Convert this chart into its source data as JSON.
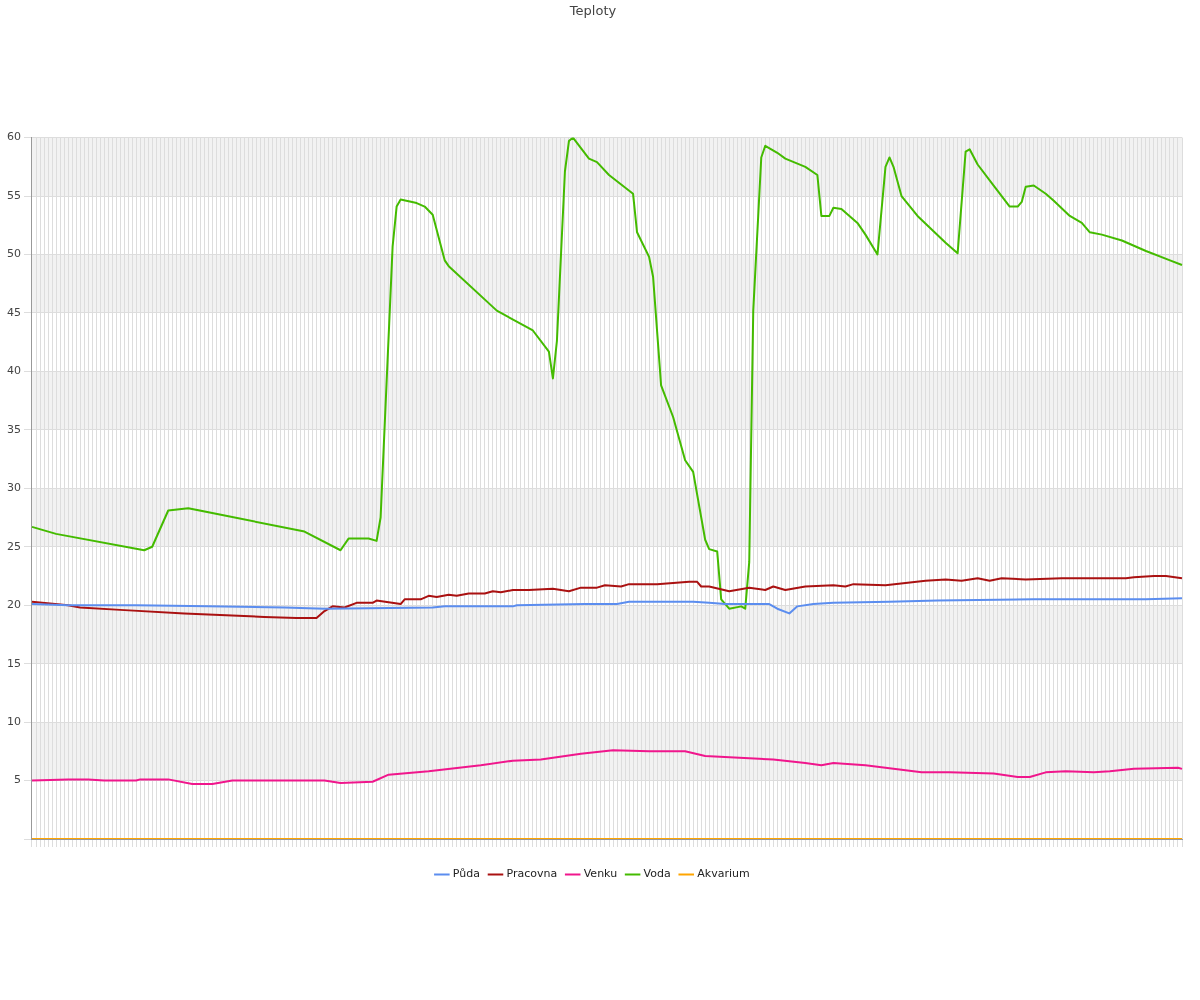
{
  "chart_data": {
    "type": "line",
    "title": "Teploty",
    "categories": [
      null,
      null,
      null,
      null,
      null,
      null,
      null,
      null,
      null,
      null,
      null,
      null,
      null,
      null,
      null,
      null,
      null,
      null,
      null,
      null,
      null,
      null,
      null,
      null,
      null,
      null,
      null,
      null,
      null,
      null,
      null,
      null,
      null,
      null,
      null,
      null,
      null,
      null,
      null,
      null,
      null,
      null,
      null,
      null,
      null,
      null,
      null,
      null,
      null,
      null,
      null,
      null,
      null,
      null,
      null,
      null,
      null,
      null,
      null,
      null,
      null,
      null,
      null,
      null,
      null,
      null,
      null,
      null,
      null,
      null,
      null,
      null,
      null,
      null,
      null,
      null,
      null,
      null,
      null,
      null,
      null,
      null,
      null,
      null,
      null,
      null,
      null,
      null,
      null,
      null,
      null,
      null,
      null,
      null,
      null,
      null,
      null,
      null,
      null,
      null,
      null,
      null,
      null,
      null,
      null,
      null,
      null,
      null,
      null,
      null,
      null,
      null,
      null,
      null,
      null,
      null,
      null,
      null,
      null,
      null,
      null,
      null,
      null,
      null,
      null,
      null,
      null,
      null,
      null,
      null,
      null,
      null,
      null,
      null,
      null,
      null,
      null,
      null,
      null,
      null,
      null,
      null,
      null,
      null,
      null,
      null,
      null,
      null,
      null,
      null,
      null,
      null,
      null,
      null,
      null,
      null,
      null,
      null,
      null,
      null,
      null,
      null,
      null,
      null,
      null,
      null,
      null,
      null,
      null,
      null,
      null,
      null,
      null,
      null,
      null,
      null,
      null,
      null,
      null,
      null,
      null,
      null,
      null,
      null,
      null,
      null,
      null,
      null,
      null,
      null,
      null,
      null,
      null,
      null,
      null,
      null,
      null,
      null,
      null,
      null,
      null,
      null,
      null,
      null,
      null,
      null,
      null,
      null,
      null,
      null,
      null,
      null,
      null,
      null,
      null,
      null,
      null,
      null,
      null,
      null,
      null,
      null,
      null,
      null,
      null,
      null,
      null,
      null,
      null,
      null,
      null,
      null,
      null,
      null,
      null,
      null,
      null,
      null,
      null,
      null,
      null,
      null,
      null,
      null,
      null,
      null,
      null,
      null,
      null,
      null,
      null,
      null,
      null,
      null,
      null,
      null,
      null,
      null,
      null,
      null,
      null,
      null,
      null,
      null,
      null,
      null,
      null,
      null,
      null,
      null,
      null,
      null,
      null,
      null,
      null,
      null,
      null,
      null,
      null,
      null,
      null,
      null,
      null,
      null,
      null,
      null,
      null,
      null
    ],
    "ylim": [
      0,
      60
    ],
    "yticks": [
      {
        "value": 0,
        "label": null
      },
      5,
      10,
      15,
      20,
      25,
      30,
      35,
      40,
      45,
      50,
      55,
      60
    ],
    "grid": true,
    "legend": "bottom",
    "tick_labels": "y",
    "marker": "none",
    "line_style": "solid",
    "bands": [
      {
        "axis": "y",
        "from": 5,
        "to": 10,
        "color": "#f2f2f2"
      },
      {
        "axis": "y",
        "from": 15,
        "to": 20,
        "color": "#f2f2f2"
      },
      {
        "axis": "y",
        "from": 25,
        "to": 30,
        "color": "#f2f2f2"
      },
      {
        "axis": "y",
        "from": 35,
        "to": 40,
        "color": "#f2f2f2"
      },
      {
        "axis": "y",
        "from": 45,
        "to": 50,
        "color": "#f2f2f2"
      },
      {
        "axis": "y",
        "from": 55,
        "to": 60,
        "color": "#f2f2f2"
      }
    ],
    "series": [
      {
        "name": "Půda",
        "color": "#5b8def",
        "values": [
          20.1,
          null,
          null,
          null,
          null,
          null,
          null,
          null,
          null,
          20.0,
          null,
          null,
          null,
          null,
          null,
          null,
          null,
          null,
          null,
          null,
          null,
          null,
          null,
          null,
          null,
          null,
          20.0,
          null,
          null,
          null,
          null,
          null,
          null,
          null,
          null,
          null,
          null,
          null,
          null,
          null,
          null,
          null,
          null,
          null,
          19.9,
          null,
          null,
          null,
          null,
          null,
          null,
          null,
          null,
          null,
          null,
          null,
          null,
          null,
          null,
          null,
          null,
          null,
          null,
          19.8,
          null,
          null,
          null,
          null,
          null,
          null,
          null,
          null,
          null,
          19.7,
          null,
          null,
          null,
          null,
          null,
          null,
          null,
          null,
          null,
          null,
          null,
          null,
          null,
          null,
          null,
          null,
          null,
          null,
          null,
          null,
          null,
          null,
          null,
          null,
          null,
          null,
          19.8,
          null,
          null,
          19.9,
          null,
          null,
          null,
          null,
          null,
          null,
          null,
          null,
          null,
          null,
          null,
          null,
          null,
          null,
          null,
          null,
          19.9,
          20.0,
          null,
          null,
          null,
          null,
          null,
          null,
          null,
          null,
          null,
          null,
          null,
          null,
          null,
          null,
          null,
          null,
          20.1,
          null,
          null,
          null,
          null,
          20.1,
          null,
          null,
          20.1,
          null,
          null,
          20.3,
          null,
          null,
          null,
          null,
          null,
          null,
          null,
          null,
          null,
          null,
          null,
          null,
          null,
          null,
          null,
          20.3,
          null,
          null,
          null,
          20.2,
          null,
          null,
          null,
          20.1,
          null,
          null,
          null,
          null,
          null,
          null,
          null,
          null,
          null,
          null,
          20.1,
          null,
          19.7,
          null,
          null,
          19.3,
          null,
          19.9,
          null,
          null,
          null,
          20.1,
          null,
          null,
          null,
          null,
          20.2,
          null,
          null,
          null,
          null,
          null,
          null,
          null,
          null,
          null,
          null,
          null,
          null,
          null,
          20.3,
          null,
          null,
          null,
          null,
          null,
          null,
          null,
          null,
          null,
          null,
          null,
          20.4,
          null,
          null,
          null,
          null,
          null,
          null,
          null,
          null,
          null,
          null,
          null,
          null,
          null,
          null,
          null,
          null,
          null,
          null,
          null,
          null,
          null,
          null,
          null,
          20.5,
          null,
          null,
          null,
          null,
          null,
          null,
          null,
          null,
          null,
          null,
          null,
          null,
          null,
          null,
          null,
          null,
          null,
          null,
          null,
          null,
          null,
          null,
          null,
          null,
          null,
          null,
          null,
          20.5,
          null,
          null,
          null,
          null,
          null,
          null,
          null,
          null,
          20.6
        ]
      },
      {
        "name": "Pracovna",
        "color": "#aa1111",
        "values": [
          20.3,
          null,
          null,
          null,
          null,
          null,
          null,
          null,
          null,
          20.0,
          null,
          null,
          19.8,
          null,
          null,
          null,
          null,
          null,
          null,
          null,
          null,
          null,
          19.6,
          null,
          null,
          null,
          null,
          null,
          null,
          null,
          null,
          null,
          null,
          null,
          null,
          null,
          null,
          null,
          19.3,
          null,
          null,
          null,
          null,
          null,
          null,
          null,
          null,
          null,
          null,
          null,
          null,
          null,
          null,
          null,
          null,
          null,
          null,
          null,
          19.0,
          null,
          null,
          null,
          null,
          null,
          null,
          null,
          18.9,
          null,
          null,
          null,
          null,
          18.9,
          null,
          19.5,
          null,
          19.9,
          null,
          null,
          19.8,
          null,
          null,
          20.2,
          null,
          null,
          null,
          20.2,
          20.4,
          null,
          null,
          null,
          null,
          null,
          20.1,
          20.5,
          null,
          null,
          null,
          20.5,
          null,
          20.8,
          null,
          20.7,
          null,
          null,
          20.9,
          null,
          20.8,
          null,
          null,
          21.0,
          null,
          null,
          null,
          21.0,
          null,
          21.2,
          null,
          21.1,
          null,
          null,
          21.3,
          null,
          null,
          null,
          21.3,
          null,
          null,
          null,
          null,
          null,
          21.4,
          null,
          null,
          null,
          21.2,
          null,
          null,
          21.5,
          null,
          null,
          null,
          21.5,
          null,
          21.7,
          null,
          null,
          null,
          21.6,
          null,
          21.8,
          null,
          null,
          null,
          null,
          null,
          null,
          21.8,
          null,
          null,
          null,
          null,
          null,
          null,
          null,
          22.0,
          null,
          22.0,
          21.6,
          null,
          21.6,
          null,
          null,
          null,
          null,
          21.2,
          null,
          null,
          null,
          null,
          21.5,
          null,
          null,
          null,
          21.3,
          null,
          21.6,
          null,
          null,
          21.3,
          null,
          null,
          null,
          null,
          21.6,
          null,
          null,
          null,
          null,
          null,
          null,
          21.7,
          null,
          null,
          21.6,
          null,
          21.8,
          null,
          null,
          null,
          null,
          null,
          null,
          null,
          21.7,
          null,
          null,
          null,
          null,
          null,
          null,
          null,
          null,
          null,
          22.1,
          null,
          null,
          null,
          null,
          22.2,
          null,
          null,
          null,
          22.1,
          null,
          null,
          null,
          22.3,
          null,
          null,
          22.1,
          null,
          null,
          22.3,
          null,
          null,
          null,
          null,
          null,
          22.2,
          null,
          null,
          null,
          null,
          null,
          null,
          null,
          null,
          22.3,
          null,
          null,
          null,
          null,
          null,
          null,
          null,
          null,
          22.3,
          null,
          null,
          null,
          null,
          null,
          null,
          22.3,
          null,
          22.4,
          null,
          null,
          null,
          null,
          22.5,
          null,
          null,
          22.5,
          null,
          null,
          null,
          22.3
        ]
      },
      {
        "name": "Venku",
        "color": "#f0168c",
        "values": [
          5.0,
          null,
          null,
          null,
          null,
          null,
          null,
          null,
          null,
          5.1,
          null,
          null,
          null,
          null,
          5.1,
          null,
          null,
          null,
          5.0,
          null,
          null,
          null,
          null,
          null,
          null,
          null,
          5.0,
          5.1,
          null,
          null,
          null,
          null,
          null,
          null,
          5.1,
          null,
          null,
          null,
          null,
          null,
          4.7,
          null,
          null,
          null,
          null,
          4.7,
          null,
          null,
          null,
          null,
          5.0,
          null,
          null,
          null,
          null,
          null,
          null,
          null,
          null,
          null,
          null,
          null,
          null,
          null,
          null,
          null,
          null,
          null,
          null,
          null,
          null,
          null,
          null,
          5.0,
          null,
          null,
          null,
          4.8,
          null,
          null,
          null,
          null,
          null,
          null,
          null,
          4.9,
          null,
          null,
          null,
          5.5,
          null,
          null,
          null,
          null,
          null,
          null,
          null,
          null,
          null,
          5.8,
          null,
          null,
          null,
          null,
          null,
          null,
          null,
          null,
          null,
          null,
          null,
          null,
          6.3,
          null,
          null,
          null,
          null,
          null,
          null,
          null,
          6.7,
          null,
          null,
          null,
          null,
          null,
          null,
          6.8,
          null,
          null,
          null,
          null,
          null,
          null,
          null,
          null,
          null,
          7.3,
          null,
          null,
          null,
          null,
          null,
          null,
          null,
          7.6,
          null,
          null,
          null,
          null,
          null,
          null,
          null,
          null,
          7.5,
          null,
          null,
          null,
          null,
          null,
          null,
          null,
          null,
          7.5,
          null,
          null,
          null,
          null,
          7.1,
          null,
          null,
          null,
          null,
          null,
          null,
          null,
          null,
          null,
          null,
          6.9,
          null,
          null,
          null,
          null,
          null,
          6.8,
          null,
          null,
          null,
          null,
          null,
          null,
          null,
          6.5,
          null,
          null,
          null,
          6.3,
          null,
          null,
          6.5,
          null,
          null,
          null,
          null,
          null,
          null,
          null,
          6.3,
          null,
          null,
          null,
          null,
          null,
          null,
          null,
          null,
          null,
          null,
          null,
          null,
          null,
          5.7,
          null,
          null,
          null,
          null,
          null,
          null,
          5.7,
          null,
          null,
          null,
          null,
          null,
          null,
          null,
          null,
          null,
          null,
          5.6,
          null,
          null,
          null,
          null,
          null,
          5.3,
          null,
          null,
          5.3,
          null,
          null,
          null,
          5.7,
          null,
          null,
          null,
          null,
          5.8,
          null,
          null,
          null,
          null,
          null,
          null,
          5.7,
          null,
          null,
          null,
          5.8,
          null,
          null,
          null,
          null,
          null,
          6.0,
          null,
          null,
          null,
          null,
          null,
          null,
          null,
          null,
          null,
          null,
          6.1,
          6.0
        ]
      },
      {
        "name": "Voda",
        "color": "#44bb00",
        "values": [
          26.7,
          null,
          null,
          null,
          null,
          null,
          26.1,
          null,
          null,
          null,
          null,
          null,
          null,
          null,
          null,
          null,
          null,
          null,
          null,
          null,
          null,
          null,
          null,
          null,
          null,
          null,
          null,
          null,
          24.7,
          null,
          25.0,
          null,
          null,
          null,
          28.1,
          null,
          null,
          null,
          null,
          28.3,
          null,
          null,
          null,
          null,
          null,
          null,
          null,
          null,
          null,
          null,
          null,
          null,
          null,
          null,
          null,
          null,
          null,
          null,
          null,
          null,
          null,
          null,
          null,
          null,
          null,
          null,
          null,
          null,
          26.3,
          null,
          null,
          null,
          null,
          null,
          null,
          null,
          null,
          24.7,
          null,
          25.7,
          null,
          null,
          null,
          null,
          25.7,
          null,
          25.5,
          27.5,
          null,
          null,
          50.7,
          54.1,
          54.7,
          null,
          null,
          null,
          54.4,
          null,
          54.1,
          null,
          53.4,
          null,
          null,
          49.5,
          49.0,
          null,
          null,
          null,
          null,
          null,
          null,
          null,
          null,
          null,
          null,
          null,
          45.2,
          null,
          null,
          null,
          null,
          null,
          null,
          null,
          null,
          43.5,
          null,
          null,
          null,
          41.7,
          39.4,
          42.6,
          null,
          57.1,
          59.7,
          60.0,
          null,
          null,
          null,
          58.2,
          null,
          57.9,
          null,
          null,
          56.8,
          null,
          null,
          null,
          null,
          null,
          55.2,
          51.9,
          null,
          null,
          49.8,
          48.1,
          null,
          38.8,
          null,
          null,
          36.1,
          null,
          null,
          32.4,
          null,
          31.4,
          null,
          null,
          25.6,
          24.8,
          null,
          24.6,
          20.5,
          null,
          19.7,
          null,
          null,
          19.9,
          19.7,
          23.7,
          45.2,
          null,
          58.3,
          59.3,
          null,
          null,
          58.7,
          null,
          58.2,
          null,
          null,
          null,
          null,
          57.5,
          null,
          null,
          56.8,
          53.3,
          null,
          53.3,
          54.0,
          null,
          53.9,
          null,
          null,
          null,
          52.7,
          null,
          51.7,
          null,
          null,
          50.0,
          null,
          57.5,
          58.3,
          57.5,
          null,
          55.0,
          null,
          null,
          null,
          53.3,
          null,
          null,
          null,
          null,
          null,
          null,
          51.0,
          null,
          null,
          50.1,
          null,
          58.8,
          59.0,
          null,
          57.7,
          null,
          null,
          null,
          55.9,
          null,
          null,
          null,
          54.1,
          null,
          54.1,
          54.5,
          55.8,
          null,
          55.9,
          null,
          null,
          55.2,
          null,
          54.6,
          null,
          null,
          null,
          53.3,
          null,
          null,
          52.7,
          null,
          51.9,
          null,
          null,
          51.7,
          null,
          null,
          null,
          null,
          51.2,
          null,
          null,
          null,
          null,
          null,
          50.3,
          null,
          null,
          null,
          null,
          null,
          49.5,
          null,
          null,
          49.1
        ]
      },
      {
        "name": "Akvarium",
        "color": "#ffa500",
        "values": [
          0,
          0,
          0,
          0,
          0,
          0,
          0,
          0,
          0,
          0,
          0,
          0,
          0,
          0,
          0,
          0,
          0,
          0,
          0,
          0,
          0,
          0,
          0,
          0,
          0,
          0,
          0,
          0,
          0,
          0,
          0,
          0,
          0,
          0,
          0,
          0,
          0,
          0,
          0,
          0,
          0,
          0,
          0,
          0,
          0,
          0,
          0,
          0,
          0,
          0,
          0,
          0,
          0,
          0,
          0,
          0,
          0,
          0,
          0,
          0,
          0,
          0,
          0,
          0,
          0,
          0,
          0,
          0,
          0,
          0,
          0,
          0,
          0,
          0,
          0,
          0,
          0,
          0,
          0,
          0,
          0,
          0,
          0,
          0,
          0,
          0,
          0,
          0,
          0,
          0,
          0,
          0,
          0,
          0,
          0,
          0,
          0,
          0,
          0,
          0,
          0,
          0,
          0,
          0,
          0,
          0,
          0,
          0,
          0,
          0,
          0,
          0,
          0,
          0,
          0,
          0,
          0,
          0,
          0,
          0,
          0,
          0,
          0,
          0,
          0,
          0,
          0,
          0,
          0,
          0,
          0,
          0,
          0,
          0,
          0,
          0,
          0,
          0,
          0,
          0,
          0,
          0,
          0,
          0,
          0,
          0,
          0,
          0,
          0,
          0,
          0,
          0,
          0,
          0,
          0,
          0,
          0,
          0,
          0,
          0,
          0,
          0,
          0,
          0,
          0,
          0,
          0,
          0,
          0,
          0,
          0,
          0,
          0,
          0,
          0,
          0,
          0,
          0,
          0,
          0,
          0,
          0,
          0,
          0,
          0,
          0,
          0,
          0,
          0,
          0,
          0,
          0,
          0,
          0,
          0,
          0,
          0,
          0,
          0,
          0,
          0,
          0,
          0,
          0,
          0,
          0,
          0,
          0,
          0,
          0,
          0,
          0,
          0,
          0,
          0,
          0,
          0,
          0,
          0,
          0,
          0,
          0,
          0,
          0,
          0,
          0,
          0,
          0,
          0,
          0,
          0,
          0,
          0,
          0,
          0,
          0,
          0,
          0,
          0,
          0,
          0,
          0,
          0,
          0,
          0,
          0,
          0,
          0,
          0,
          0,
          0,
          0,
          0,
          0,
          0,
          0,
          0,
          0,
          0,
          0,
          0,
          0,
          0,
          0,
          0,
          0,
          0,
          0,
          0,
          0,
          0,
          0,
          0,
          0,
          0,
          0,
          0,
          0,
          0,
          0,
          0,
          0,
          0,
          0,
          0,
          0,
          0,
          0
        ]
      }
    ]
  }
}
